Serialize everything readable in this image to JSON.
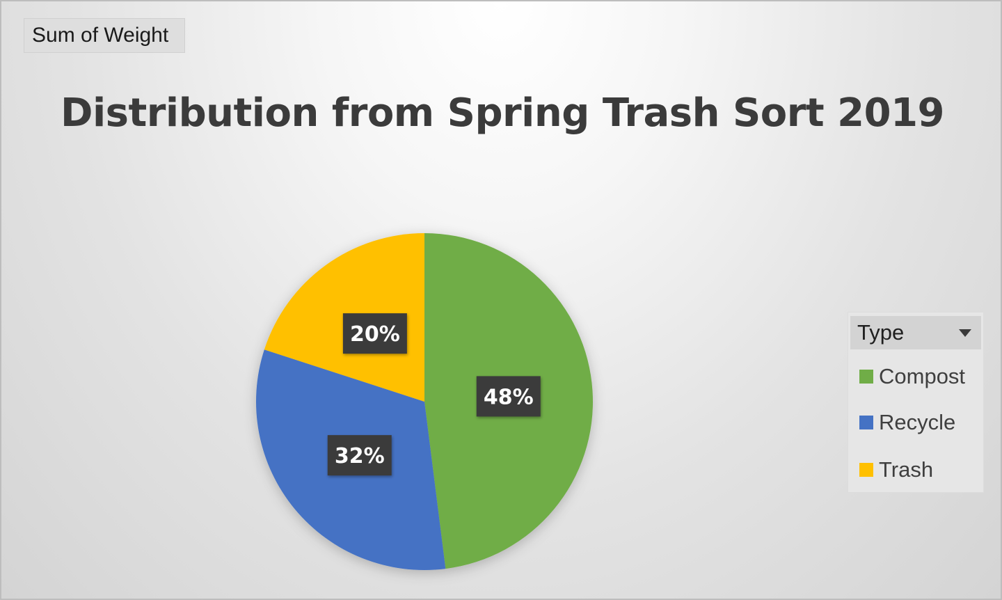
{
  "field_button": {
    "label": "Sum of Weight"
  },
  "legend": {
    "title": "Type",
    "dropdown_icon": "chevron-down-icon"
  },
  "chart_data": {
    "type": "pie",
    "title": "Distribution from Spring Trash Sort 2019",
    "categories": [
      "Compost",
      "Recycle",
      "Trash"
    ],
    "values": [
      48,
      32,
      20
    ],
    "data_labels": [
      "48%",
      "32%",
      "20%"
    ],
    "colors": [
      "#70ad47",
      "#4472c4",
      "#ffc000"
    ],
    "start_angle_deg": 0,
    "direction": "clockwise",
    "legend_position": "right"
  }
}
